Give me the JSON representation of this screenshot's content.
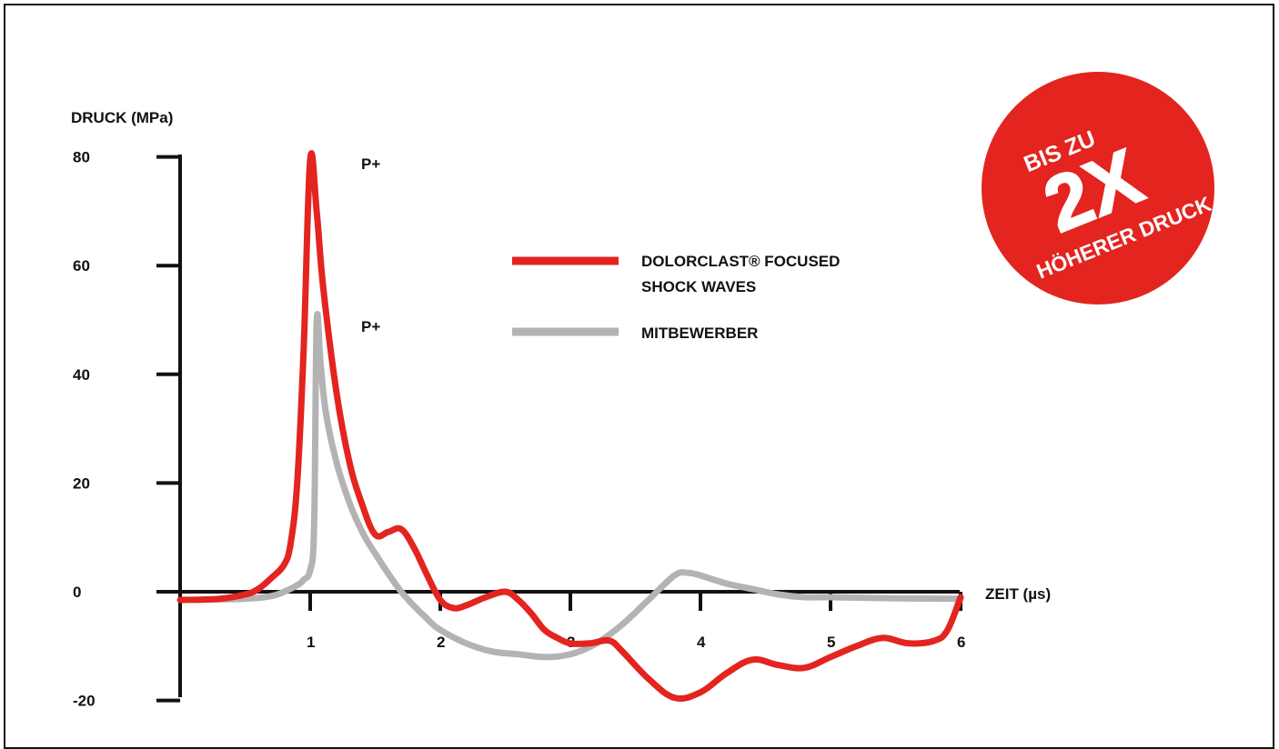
{
  "chart_data": {
    "type": "line",
    "ylabel": "DRUCK (MPa)",
    "xlabel": "ZEIT (µs)",
    "xlim": [
      0,
      6
    ],
    "ylim": [
      -20,
      80
    ],
    "x_ticks": [
      "1",
      "2",
      "3",
      "4",
      "5",
      "6"
    ],
    "y_ticks": [
      "80",
      "60",
      "40",
      "20",
      "0",
      "-20"
    ],
    "series": [
      {
        "name": "DOLORCLAST® FOCUSED SHOCK WAVES",
        "legend_lines": [
          "DOLORCLAST® FOCUSED",
          "SHOCK WAVES"
        ],
        "color": "#e3241f",
        "peak_label": "P+",
        "x": [
          0,
          0.3,
          0.5,
          0.6,
          0.7,
          0.8,
          0.85,
          0.9,
          0.95,
          1.0,
          1.05,
          1.1,
          1.2,
          1.3,
          1.4,
          1.5,
          1.6,
          1.7,
          1.8,
          1.9,
          2.0,
          2.1,
          2.2,
          2.35,
          2.5,
          2.6,
          2.7,
          2.8,
          2.9,
          3.0,
          3.15,
          3.3,
          3.4,
          3.6,
          3.8,
          4.0,
          4.2,
          4.4,
          4.6,
          4.8,
          5.0,
          5.2,
          5.4,
          5.6,
          5.8,
          5.9,
          6.0
        ],
        "y": [
          -1.5,
          -1.3,
          -0.5,
          0.5,
          2.5,
          5,
          9,
          20,
          45,
          79.5,
          70,
          56,
          37,
          24,
          16,
          10.5,
          11,
          11.5,
          8,
          3,
          -1.5,
          -3,
          -2.5,
          -1,
          0,
          -1.5,
          -4,
          -7,
          -8.5,
          -9.5,
          -9.5,
          -9,
          -11,
          -16,
          -19.5,
          -18.5,
          -15,
          -12.5,
          -13.5,
          -14,
          -12,
          -10,
          -8.5,
          -9.5,
          -9,
          -7,
          -1
        ]
      },
      {
        "name": "MITBEWERBER",
        "legend_lines": [
          "MITBEWERBER"
        ],
        "color": "#b3b3b3",
        "peak_label": "P+",
        "x": [
          0.1,
          0.5,
          0.7,
          0.8,
          0.9,
          0.95,
          1.0,
          1.03,
          1.05,
          1.08,
          1.12,
          1.2,
          1.3,
          1.4,
          1.5,
          1.7,
          1.9,
          2.0,
          2.2,
          2.4,
          2.6,
          2.8,
          3.0,
          3.2,
          3.4,
          3.6,
          3.8,
          3.9,
          4.0,
          4.2,
          4.4,
          4.6,
          4.8,
          5.0,
          5.5,
          6.0
        ],
        "y": [
          -1.5,
          -1.3,
          -0.8,
          0,
          1.2,
          2.2,
          4,
          12,
          49.5,
          42,
          33,
          24,
          16.5,
          11,
          7,
          0,
          -5,
          -7,
          -9.5,
          -11,
          -11.5,
          -12,
          -11.5,
          -9.5,
          -6,
          -1.5,
          3,
          3.5,
          3,
          1.5,
          0.5,
          -0.5,
          -1,
          -1,
          -1.2,
          -1.3
        ]
      }
    ],
    "badge": {
      "line1": "BIS ZU",
      "line2": "2X",
      "line3": "HÖHERER DRUCK",
      "color": "#e3241f"
    }
  }
}
